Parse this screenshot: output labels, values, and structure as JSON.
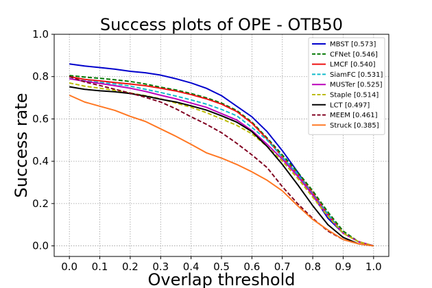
{
  "chart_data": {
    "type": "line",
    "title": "Success plots of OPE - OTB50",
    "xlabel": "Overlap threshold",
    "ylabel": "Success rate",
    "xlim": [
      -0.05,
      1.05
    ],
    "ylim": [
      -0.05,
      1.0
    ],
    "xticks": [
      "0.0",
      "0.1",
      "0.2",
      "0.3",
      "0.4",
      "0.5",
      "0.6",
      "0.7",
      "0.8",
      "0.9",
      "1.0"
    ],
    "yticks": [
      "0.0",
      "0.2",
      "0.4",
      "0.6",
      "0.8",
      "1.0"
    ],
    "grid": true,
    "legend_position": "top-right",
    "x": [
      0.0,
      0.05,
      0.1,
      0.15,
      0.2,
      0.25,
      0.3,
      0.35,
      0.4,
      0.45,
      0.5,
      0.55,
      0.6,
      0.65,
      0.7,
      0.75,
      0.8,
      0.85,
      0.9,
      0.95,
      1.0
    ],
    "series": [
      {
        "name": "MBST [0.573]",
        "color": "#0000cc",
        "dash": "solid",
        "values": [
          0.86,
          0.85,
          0.843,
          0.835,
          0.825,
          0.818,
          0.807,
          0.79,
          0.77,
          0.745,
          0.71,
          0.66,
          0.61,
          0.54,
          0.45,
          0.35,
          0.24,
          0.13,
          0.06,
          0.02,
          0.0
        ]
      },
      {
        "name": "CFNet [0.546]",
        "color": "#007700",
        "dash": "dashed",
        "values": [
          0.805,
          0.798,
          0.792,
          0.785,
          0.777,
          0.765,
          0.75,
          0.737,
          0.72,
          0.7,
          0.675,
          0.64,
          0.585,
          0.51,
          0.43,
          0.35,
          0.26,
          0.16,
          0.07,
          0.02,
          0.0
        ]
      },
      {
        "name": "LMCF [0.540]",
        "color": "#ee1111",
        "dash": "solid",
        "values": [
          0.8,
          0.787,
          0.78,
          0.772,
          0.765,
          0.757,
          0.745,
          0.732,
          0.715,
          0.695,
          0.67,
          0.635,
          0.58,
          0.505,
          0.42,
          0.34,
          0.25,
          0.15,
          0.06,
          0.02,
          0.0
        ]
      },
      {
        "name": "SiamFC [0.531]",
        "color": "#11bbcc",
        "dash": "dashed",
        "values": [
          0.79,
          0.78,
          0.773,
          0.765,
          0.755,
          0.74,
          0.725,
          0.708,
          0.69,
          0.67,
          0.645,
          0.615,
          0.56,
          0.5,
          0.42,
          0.34,
          0.245,
          0.15,
          0.06,
          0.02,
          0.0
        ]
      },
      {
        "name": "MUSTer [0.525]",
        "color": "#bb00bb",
        "dash": "solid",
        "values": [
          0.79,
          0.778,
          0.768,
          0.757,
          0.745,
          0.73,
          0.712,
          0.695,
          0.675,
          0.655,
          0.625,
          0.595,
          0.545,
          0.48,
          0.41,
          0.33,
          0.24,
          0.14,
          0.06,
          0.02,
          0.0
        ]
      },
      {
        "name": "Staple [0.514]",
        "color": "#bbbb00",
        "dash": "dashed",
        "values": [
          0.77,
          0.755,
          0.745,
          0.735,
          0.722,
          0.71,
          0.695,
          0.675,
          0.655,
          0.63,
          0.6,
          0.57,
          0.53,
          0.47,
          0.4,
          0.32,
          0.23,
          0.14,
          0.06,
          0.02,
          0.0
        ]
      },
      {
        "name": "LCT [0.497]",
        "color": "#000000",
        "dash": "solid",
        "values": [
          0.752,
          0.74,
          0.733,
          0.728,
          0.72,
          0.708,
          0.693,
          0.68,
          0.662,
          0.642,
          0.615,
          0.585,
          0.54,
          0.47,
          0.385,
          0.29,
          0.19,
          0.1,
          0.04,
          0.01,
          0.0
        ]
      },
      {
        "name": "MEEM [0.461]",
        "color": "#800020",
        "dash": "dashed",
        "values": [
          0.8,
          0.775,
          0.758,
          0.74,
          0.722,
          0.702,
          0.68,
          0.648,
          0.61,
          0.575,
          0.535,
          0.485,
          0.43,
          0.37,
          0.28,
          0.2,
          0.13,
          0.07,
          0.03,
          0.01,
          0.0
        ]
      },
      {
        "name": "Struck [0.385]",
        "color": "#ff7722",
        "dash": "solid",
        "values": [
          0.712,
          0.68,
          0.66,
          0.64,
          0.612,
          0.588,
          0.553,
          0.518,
          0.48,
          0.44,
          0.415,
          0.385,
          0.35,
          0.31,
          0.26,
          0.19,
          0.125,
          0.075,
          0.03,
          0.01,
          0.0
        ]
      }
    ]
  }
}
